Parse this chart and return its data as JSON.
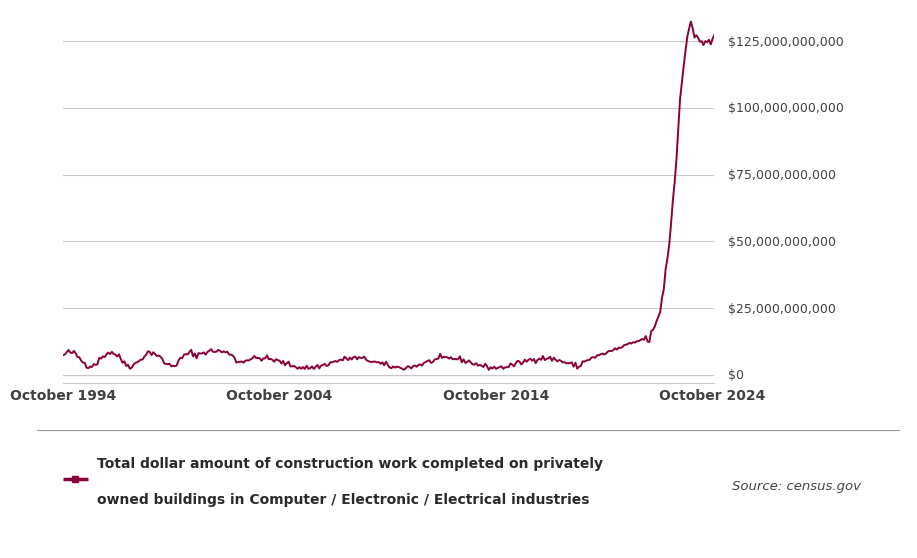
{
  "line_color": "#8B0038",
  "bg_color": "#FFFFFF",
  "legend_bg": "#ECEAE7",
  "axis_label_color": "#404040",
  "grid_color": "#C8C8C8",
  "yticks": [
    0,
    25000000000,
    50000000000,
    75000000000,
    100000000000,
    125000000000
  ],
  "ytick_labels": [
    "$0",
    "$25,000,000,000",
    "$50,000,000,000",
    "$75,000,000,000",
    "$100,000,000,000",
    "$125,000,000,000"
  ],
  "xtick_labels": [
    "October 1994",
    "October 2004",
    "October 2014",
    "October 2024"
  ],
  "source_text": "Source: census.gov",
  "legend_text_line1": "Total dollar amount of construction work completed on privately",
  "legend_text_line2": "owned buildings in Computer / Electronic / Electrical industries",
  "ymax": 137000000000,
  "ymin": -3000000000,
  "bottom_bar_color": "#2B3A5C",
  "legend_border_color": "#999999"
}
